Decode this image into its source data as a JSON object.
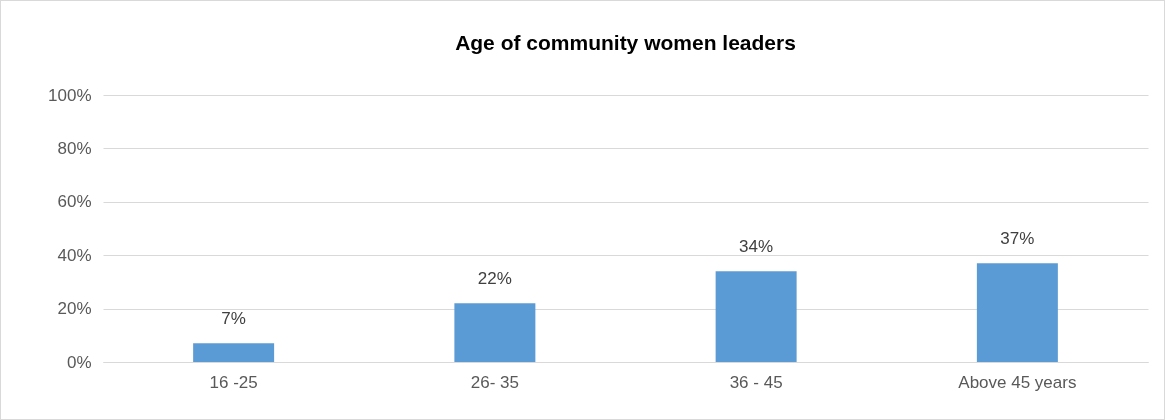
{
  "chart_data": {
    "type": "bar",
    "title": "Age of community women leaders",
    "categories": [
      "16 -25",
      "26- 35",
      "36 - 45",
      "Above 45 years"
    ],
    "values": [
      7,
      22,
      34,
      37
    ],
    "color": "#5b9bd5",
    "value_labels": [
      "7%",
      "22%",
      "34%",
      "37%"
    ],
    "ylim": [
      0,
      100
    ],
    "yticks": [
      {
        "value": 0,
        "label": "0%"
      },
      {
        "value": 20,
        "label": "20%"
      },
      {
        "value": 40,
        "label": "40%"
      },
      {
        "value": 60,
        "label": "60%"
      },
      {
        "value": 80,
        "label": "80%"
      },
      {
        "value": 100,
        "label": "100%"
      }
    ],
    "grid": "y"
  }
}
